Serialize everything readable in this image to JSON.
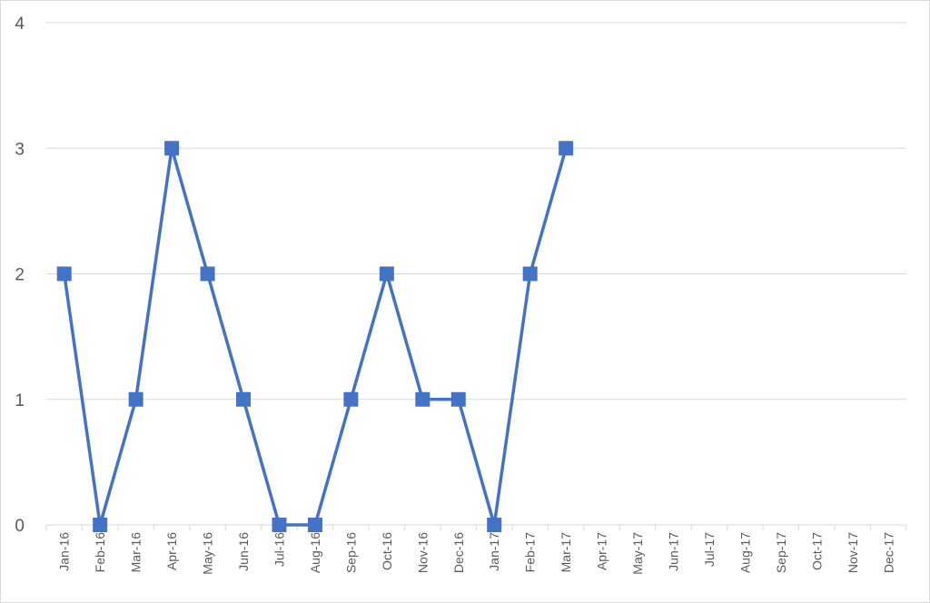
{
  "chart_data": {
    "type": "line",
    "title": "",
    "xlabel": "",
    "ylabel": "",
    "ylim": [
      0,
      4
    ],
    "yticks": [
      "0",
      "1",
      "2",
      "3",
      "4"
    ],
    "grid": true,
    "legend": "none",
    "categories": [
      "Jan-16",
      "Feb-16",
      "Mar-16",
      "Apr-16",
      "May-16",
      "Jun-16",
      "Jul-16",
      "Aug-16",
      "Sep-16",
      "Oct-16",
      "Nov-16",
      "Dec-16",
      "Jan-17",
      "Feb-17",
      "Mar-17",
      "Apr-17",
      "May-17",
      "Jun-17",
      "Jul-17",
      "Aug-17",
      "Sep-17",
      "Oct-17",
      "Nov-17",
      "Dec-17"
    ],
    "series": [
      {
        "color": "#4472c4",
        "marker": "square",
        "values": [
          2,
          0,
          1,
          3,
          2,
          1,
          0,
          0,
          1,
          2,
          1,
          1,
          0,
          2,
          3,
          null,
          null,
          null,
          null,
          null,
          null,
          null,
          null,
          null
        ]
      }
    ]
  }
}
